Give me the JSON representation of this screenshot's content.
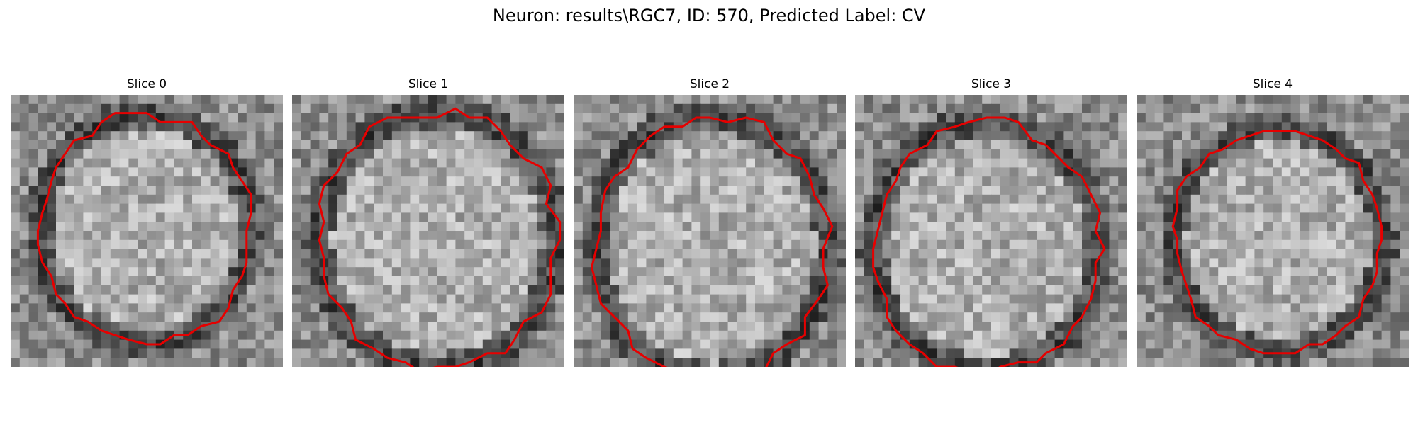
{
  "figure": {
    "suptitle": "Neuron: results\\RGC7, ID: 570, Predicted Label: CV"
  },
  "panels": [
    {
      "title": "Slice 0",
      "contour_color": "#e60000",
      "grid": 30
    },
    {
      "title": "Slice 1",
      "contour_color": "#e60000",
      "grid": 30
    },
    {
      "title": "Slice 2",
      "contour_color": "#e60000",
      "grid": 30
    },
    {
      "title": "Slice 3",
      "contour_color": "#e60000",
      "grid": 30
    },
    {
      "title": "Slice 4",
      "contour_color": "#e60000",
      "grid": 30
    }
  ]
}
